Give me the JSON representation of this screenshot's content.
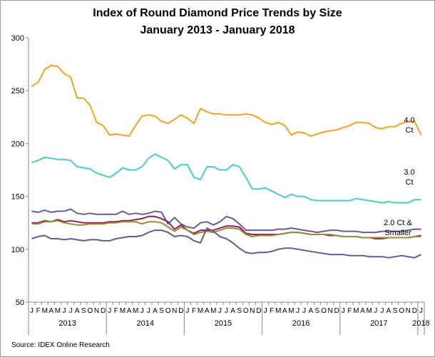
{
  "title_line1": "Index of Round Diamond Price Trends by Size",
  "title_line2": "January 2013 - January 2018",
  "source": "Source:  IDEX Online Research",
  "chart_data": {
    "type": "line",
    "ylim": [
      50,
      300
    ],
    "yticks": [
      50,
      100,
      150,
      200,
      250,
      300
    ],
    "month_labels": [
      "J",
      "F",
      "M",
      "A",
      "M",
      "J",
      "J",
      "A",
      "S",
      "O",
      "N",
      "D",
      "J",
      "F",
      "M",
      "A",
      "M",
      "J",
      "J",
      "A",
      "S",
      "O",
      "N",
      "D",
      "J",
      "F",
      "M",
      "A",
      "M",
      "J",
      "J",
      "A",
      "S",
      "O",
      "N",
      "D",
      "J",
      "F",
      "M",
      "A",
      "M",
      "J",
      "J",
      "A",
      "S",
      "O",
      "N",
      "D",
      "J",
      "F",
      "M",
      "A",
      "M",
      "J",
      "J",
      "A",
      "S",
      "O",
      "N",
      "D",
      "J"
    ],
    "year_labels": [
      "2013",
      "2014",
      "2015",
      "2016",
      "2017",
      "2018"
    ],
    "series_labels": {
      "s40": [
        "4.0",
        "Ct"
      ],
      "s30": [
        "3.0",
        "Ct"
      ],
      "s20": [
        "2.0 Ct &",
        "Smaller"
      ]
    },
    "series": [
      {
        "id": "s40",
        "color": "#f5a31a",
        "values": [
          254,
          258,
          270,
          274,
          273,
          266,
          263,
          243,
          243,
          236,
          220,
          217,
          208,
          209,
          208,
          207,
          217,
          226,
          227,
          226,
          221,
          219,
          223,
          227,
          224,
          219,
          233,
          230,
          228,
          228,
          227,
          227,
          227,
          228,
          227,
          224,
          220,
          218,
          220,
          217,
          208,
          211,
          210,
          207,
          209,
          211,
          212,
          213,
          215,
          217,
          220,
          220,
          219,
          215,
          214,
          216,
          216,
          219,
          221,
          221,
          208
        ]
      },
      {
        "id": "s30",
        "color": "#44cfc6",
        "values": [
          182,
          184,
          187,
          186,
          185,
          185,
          184,
          178,
          177,
          176,
          172,
          170,
          168,
          172,
          177,
          175,
          175,
          178,
          186,
          190,
          187,
          184,
          176,
          180,
          180,
          168,
          166,
          178,
          178,
          175,
          175,
          180,
          178,
          168,
          157,
          157,
          158,
          155,
          152,
          149,
          152,
          150,
          150,
          147,
          146,
          146,
          146,
          146,
          146,
          146,
          148,
          147,
          146,
          145,
          144,
          145,
          144,
          144,
          144,
          147,
          147
        ]
      },
      {
        "id": "sA",
        "color": "#6a5a9c",
        "values": [
          136,
          135,
          137,
          135,
          136,
          136,
          138,
          134,
          133,
          134,
          133,
          133,
          133,
          133,
          136,
          133,
          134,
          133,
          134,
          136,
          135,
          124,
          130,
          124,
          121,
          120,
          125,
          126,
          123,
          126,
          131,
          129,
          124,
          118,
          118,
          118,
          118,
          118,
          119,
          119,
          120,
          119,
          118,
          117,
          116,
          117,
          118,
          118,
          117,
          117,
          117,
          116,
          116,
          116,
          117,
          117,
          117,
          117,
          118,
          119,
          119
        ]
      },
      {
        "id": "sB",
        "color": "#8b2252",
        "values": [
          125,
          125,
          127,
          126,
          128,
          126,
          127,
          126,
          125,
          125,
          125,
          125,
          126,
          126,
          127,
          127,
          128,
          129,
          131,
          131,
          129,
          126,
          119,
          123,
          118,
          115,
          118,
          118,
          118,
          120,
          122,
          122,
          121,
          115,
          114,
          114,
          114,
          114,
          114,
          115,
          116,
          116,
          115,
          114,
          114,
          114,
          113,
          113,
          112,
          112,
          112,
          111,
          111,
          110,
          110,
          111,
          111,
          111,
          111,
          112,
          113
        ]
      },
      {
        "id": "sC",
        "color": "#9c8a3a",
        "values": [
          124,
          124,
          126,
          126,
          127,
          125,
          124,
          123,
          123,
          124,
          124,
          124,
          125,
          125,
          126,
          126,
          126,
          124,
          126,
          126,
          125,
          121,
          117,
          121,
          118,
          114,
          116,
          117,
          116,
          118,
          120,
          120,
          119,
          114,
          112,
          113,
          113,
          113,
          114,
          115,
          116,
          116,
          115,
          114,
          114,
          114,
          114,
          113,
          112,
          112,
          112,
          111,
          111,
          111,
          111,
          111,
          111,
          111,
          111,
          112,
          112
        ]
      },
      {
        "id": "sD",
        "color": "#5e5b96",
        "values": [
          110,
          112,
          113,
          110,
          110,
          109,
          110,
          109,
          108,
          109,
          109,
          108,
          108,
          110,
          111,
          112,
          112,
          113,
          116,
          118,
          118,
          116,
          112,
          113,
          112,
          108,
          106,
          120,
          117,
          112,
          110,
          106,
          101,
          97,
          96,
          97,
          97,
          98,
          100,
          101,
          101,
          100,
          99,
          98,
          97,
          96,
          95,
          95,
          95,
          94,
          94,
          94,
          93,
          93,
          93,
          92,
          93,
          94,
          93,
          92,
          95
        ]
      }
    ]
  }
}
